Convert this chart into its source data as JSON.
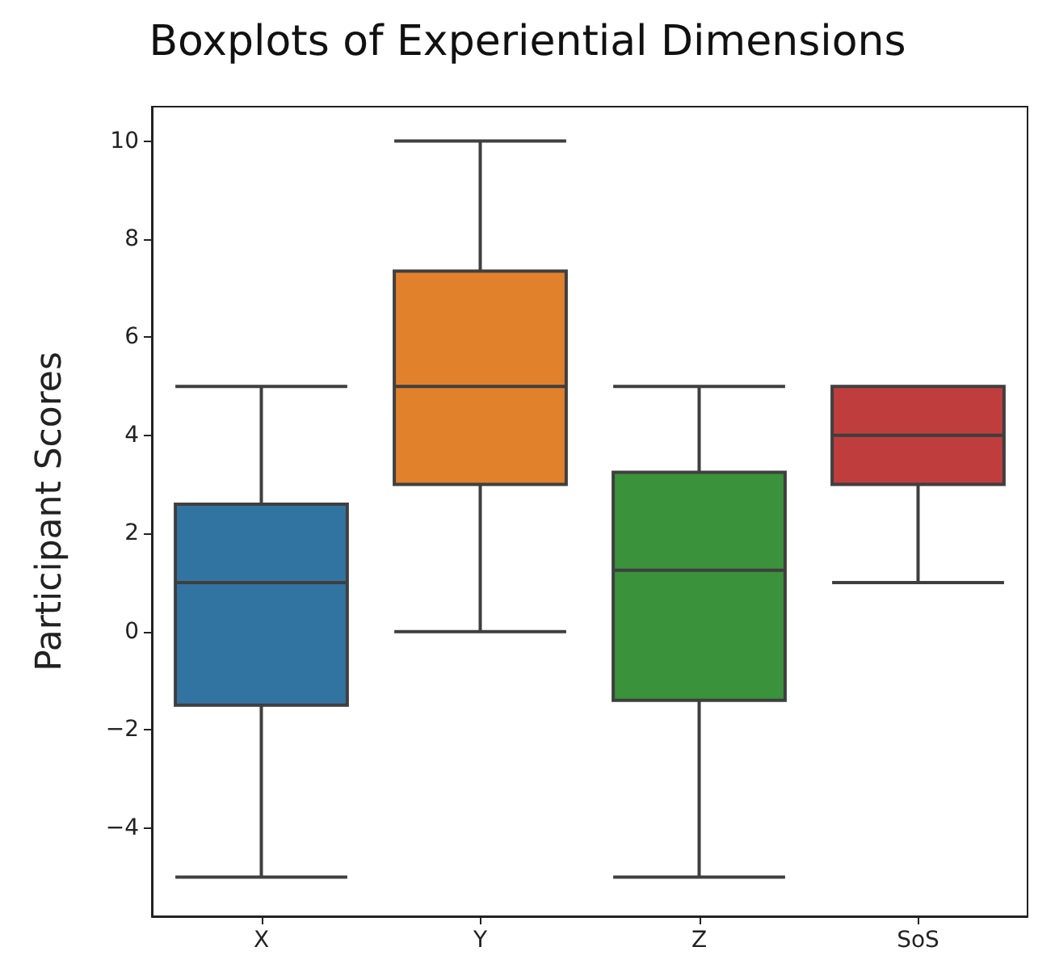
{
  "chart_data": {
    "type": "box",
    "title": "Boxplots of Experiential Dimensions",
    "ylabel": "Participant Scores",
    "categories": [
      "X",
      "Y",
      "Z",
      "SoS"
    ],
    "colors": [
      "#3274a1",
      "#e1812c",
      "#3a923a",
      "#c03d3e"
    ],
    "boxes": [
      {
        "low": -5,
        "q1": -1.5,
        "median": 1,
        "q3": 2.6,
        "high": 5
      },
      {
        "low": 0,
        "q1": 3,
        "median": 5,
        "q3": 7.35,
        "high": 10
      },
      {
        "low": -5,
        "q1": -1.4,
        "median": 1.25,
        "q3": 3.25,
        "high": 5
      },
      {
        "low": 1,
        "q1": 3,
        "median": 4,
        "q3": 5,
        "high": 5
      }
    ],
    "ylim": [
      -5.8,
      10.7
    ],
    "yticks": [
      -4,
      -2,
      0,
      2,
      4,
      6,
      8,
      10
    ],
    "grid": false
  }
}
